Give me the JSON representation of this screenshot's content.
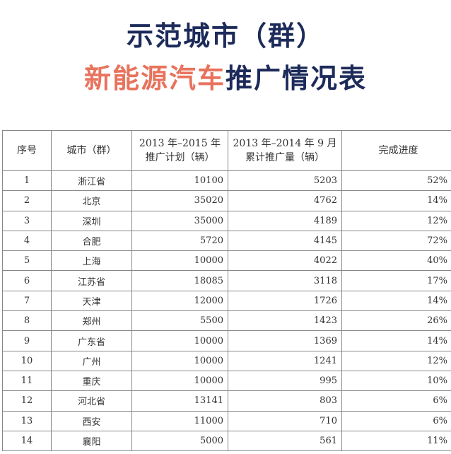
{
  "title": {
    "line1": "示范城市（群）",
    "line2_accent": "新能源汽车",
    "line2_rest": "推广情况表",
    "colors": {
      "navy": "#1d2b5a",
      "accent": "#e8735d"
    }
  },
  "table": {
    "headers": [
      "序号",
      "城市（群）",
      "2013 年–2015 年推广计划（辆）",
      "2013 年–2014 年 9 月累计推广量（辆）",
      "完成进度"
    ],
    "rows": [
      [
        "1",
        "浙江省",
        "10100",
        "5203",
        "52%"
      ],
      [
        "2",
        "北京",
        "35020",
        "4762",
        "14%"
      ],
      [
        "3",
        "深圳",
        "35000",
        "4189",
        "12%"
      ],
      [
        "4",
        "合肥",
        "5720",
        "4145",
        "72%"
      ],
      [
        "5",
        "上海",
        "10000",
        "4022",
        "40%"
      ],
      [
        "6",
        "江苏省",
        "18085",
        "3118",
        "17%"
      ],
      [
        "7",
        "天津",
        "12000",
        "1726",
        "14%"
      ],
      [
        "8",
        "郑州",
        "5500",
        "1423",
        "26%"
      ],
      [
        "9",
        "广东省",
        "10000",
        "1369",
        "14%"
      ],
      [
        "10",
        "广州",
        "10000",
        "1241",
        "12%"
      ],
      [
        "11",
        "重庆",
        "10000",
        "995",
        "10%"
      ],
      [
        "12",
        "河北省",
        "13141",
        "803",
        "6%"
      ],
      [
        "13",
        "西安",
        "11000",
        "710",
        "6%"
      ],
      [
        "14",
        "襄阳",
        "5000",
        "561",
        "11%"
      ]
    ]
  }
}
